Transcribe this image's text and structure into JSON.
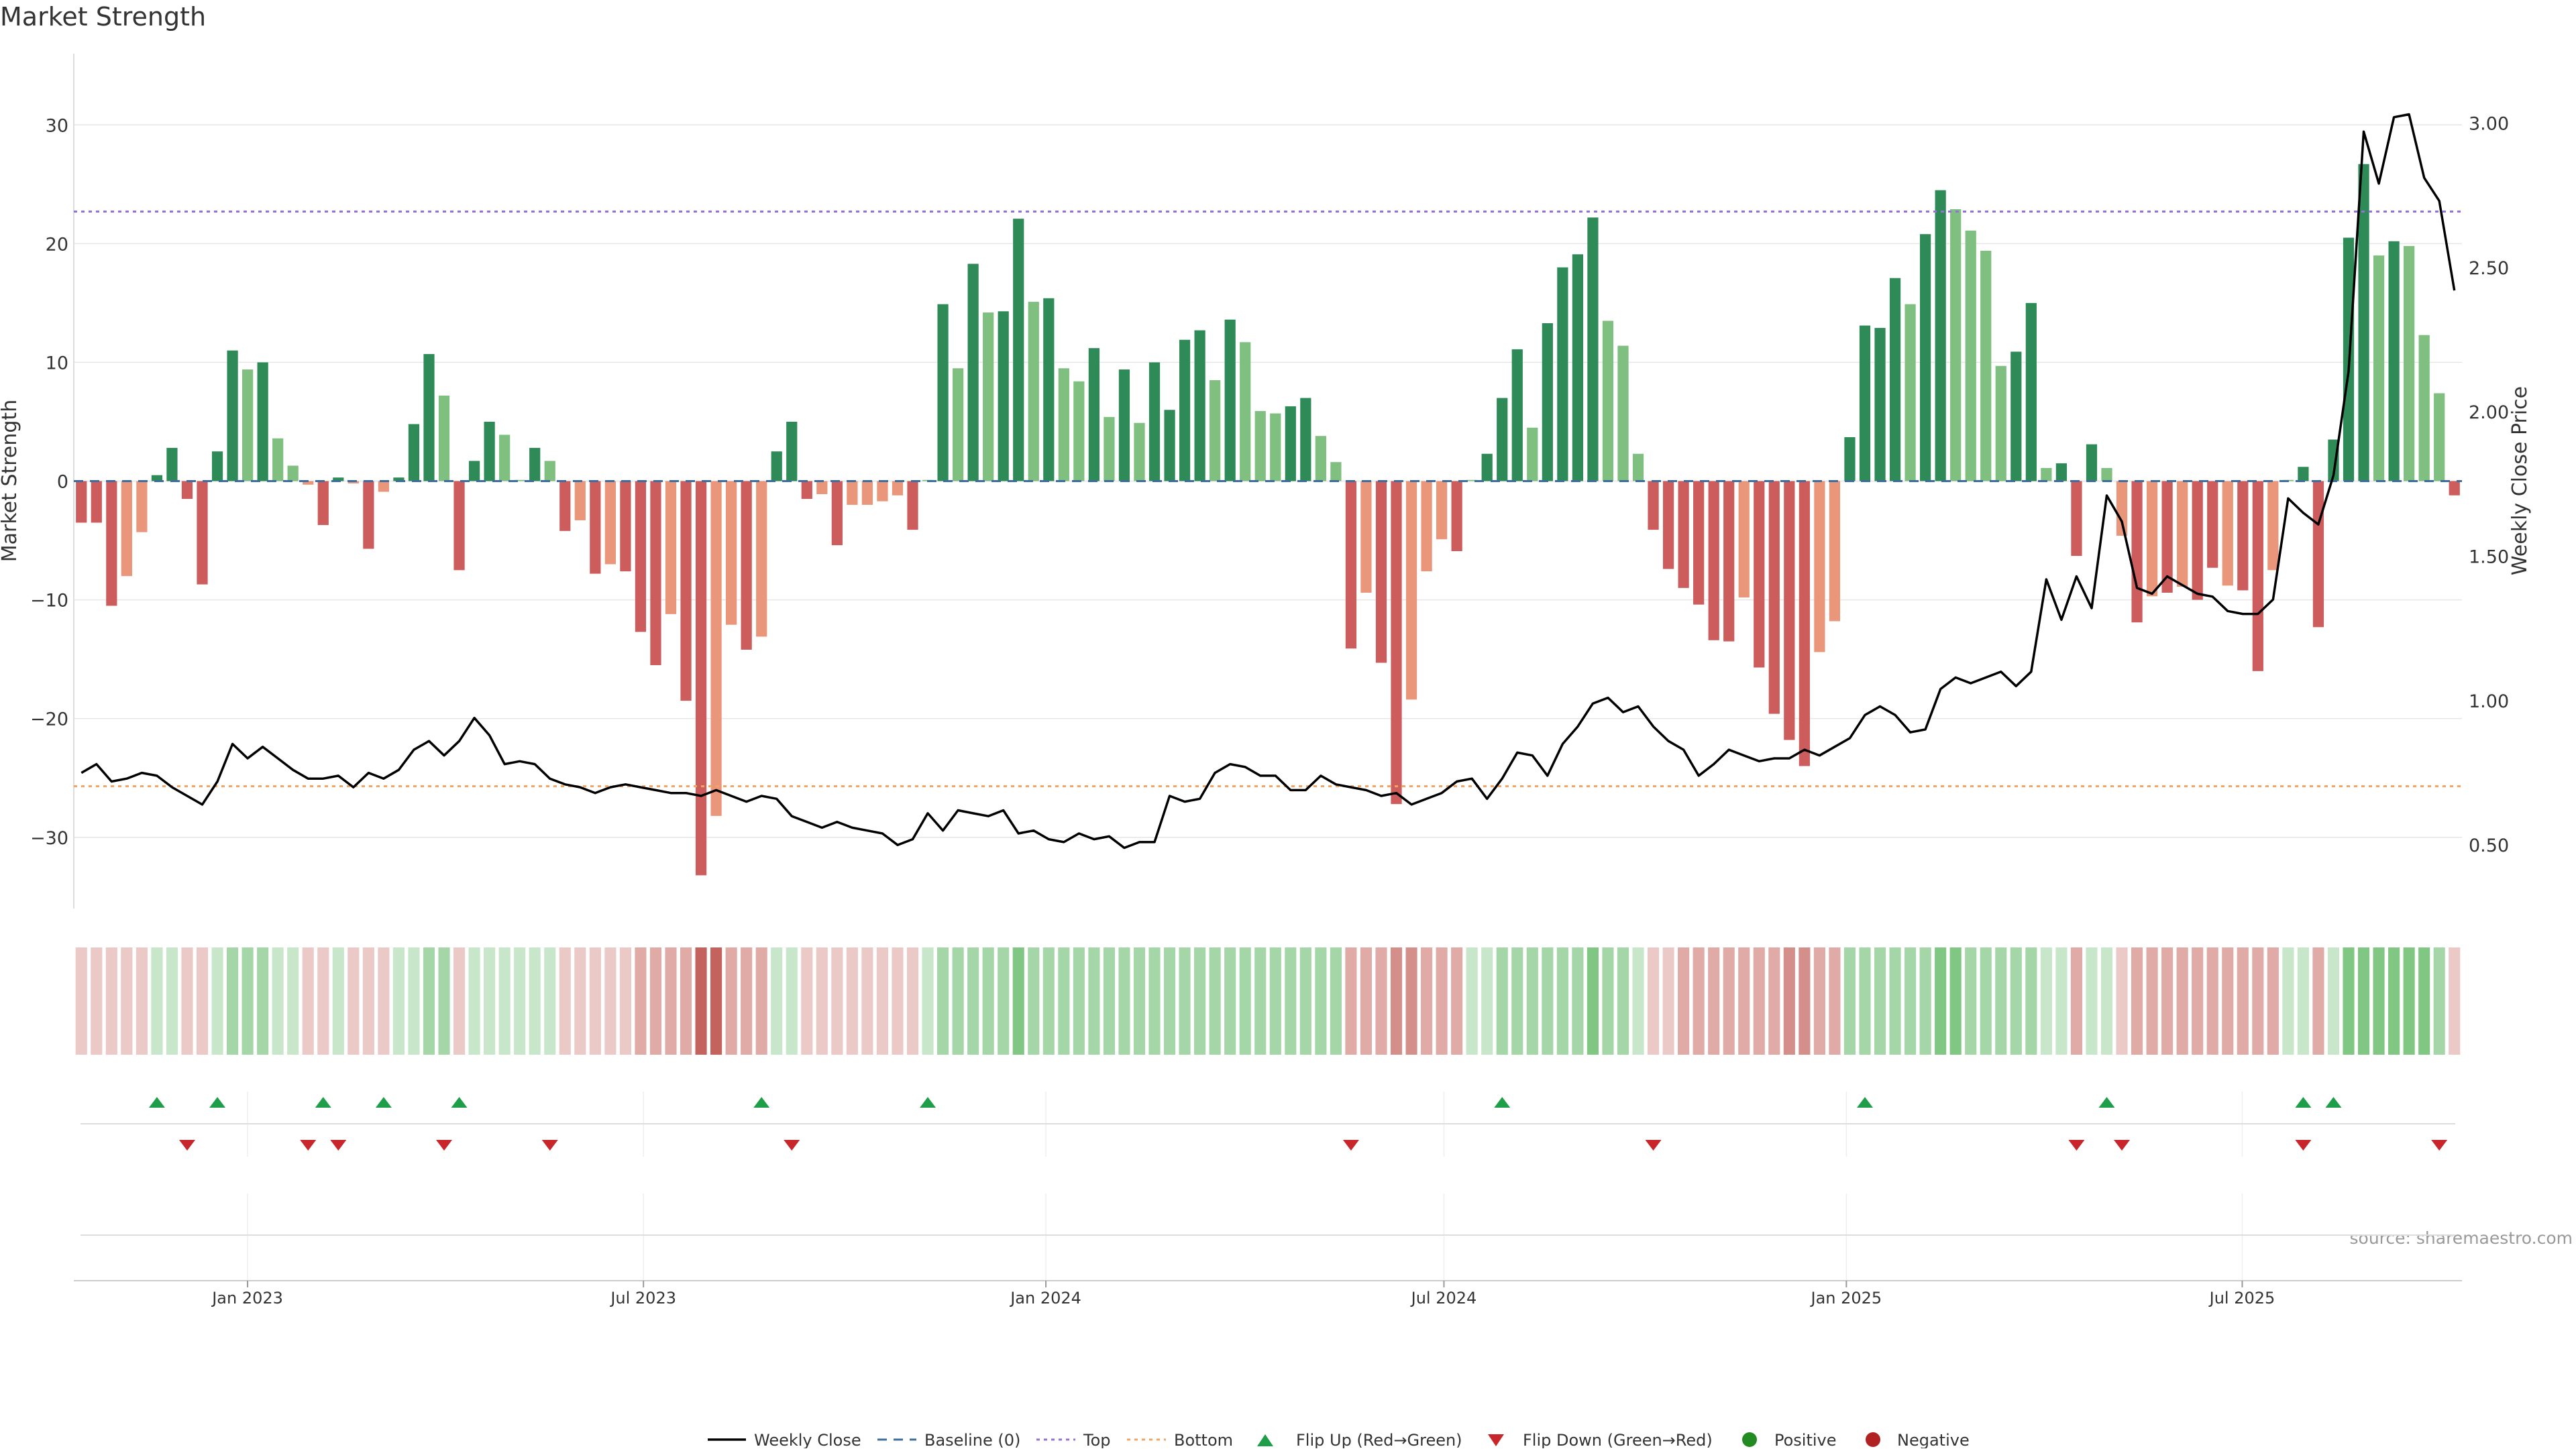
{
  "title": "Market Strength",
  "source": "source: sharemaestro.com",
  "colors": {
    "strong_green": "#2e8b57",
    "light_green": "#7fbf7f",
    "strong_red": "#cd5c5c",
    "light_red": "#e9967a",
    "price_line": "#000000",
    "baseline": "#3b6e9e",
    "top_line": "#9370db",
    "bottom_line": "#f4a460",
    "flip_up": "#1e9e48",
    "flip_down": "#c8262b",
    "positive_dot": "#228b22",
    "negative_dot": "#b22222"
  },
  "chart_data": {
    "type": "bar",
    "title": "Market Strength",
    "ylabel": "Market Strength",
    "y2label": "Weekly Close Price",
    "ylim": [
      -36,
      36
    ],
    "y2lim": [
      0.28,
      3.24
    ],
    "yticks": [
      30,
      20,
      10,
      0,
      -10,
      -20,
      -30
    ],
    "y2ticks": [
      "3.00",
      "2.50",
      "2.00",
      "1.50",
      "1.00",
      "0.50"
    ],
    "y2tick_values": [
      3.0,
      2.5,
      2.0,
      1.5,
      1.0,
      0.5
    ],
    "x_start": "2022-10-17",
    "x_end": "2025-10-06",
    "x_tick_labels": [
      "Jan 2023",
      "Jul 2023",
      "Jan 2024",
      "Jul 2024",
      "Jan 2025",
      "Jul 2025"
    ],
    "x_tick_dates": [
      "2023-01-01",
      "2023-07-01",
      "2024-01-01",
      "2024-07-01",
      "2025-01-01",
      "2025-07-01"
    ],
    "top_level": 22.7,
    "bottom_level": -25.7,
    "grid": true,
    "legend_position": "bottom",
    "series": [
      {
        "name": "Market Strength",
        "values": [
          -3.5,
          -3.5,
          -10.5,
          -8,
          -4.3,
          0.5,
          2.8,
          -1.5,
          -8.7,
          2.5,
          11,
          9.4,
          10,
          3.6,
          1.3,
          -0.3,
          -3.7,
          0.3,
          -0.2,
          -5.7,
          -0.9,
          0.3,
          4.8,
          10.7,
          7.2,
          -7.5,
          1.7,
          5,
          3.9,
          0.1,
          2.8,
          1.7,
          -4.2,
          -3.3,
          -7.8,
          -7,
          -7.6,
          -12.7,
          -15.5,
          -11.2,
          -18.5,
          -33.2,
          -28.2,
          -12.1,
          -14.2,
          -13.1,
          2.5,
          5,
          -1.5,
          -1.1,
          -5.4,
          -2,
          -2,
          -1.7,
          -1.2,
          -4.1,
          0.1,
          14.9,
          9.5,
          18.3,
          14.2,
          14.3,
          22.1,
          15.1,
          15.4,
          9.5,
          8.4,
          11.2,
          5.4,
          9.4,
          4.9,
          10,
          6,
          11.9,
          12.7,
          8.5,
          13.6,
          11.7,
          5.9,
          5.7,
          6.3,
          7,
          3.8,
          1.6,
          -14.1,
          -9.4,
          -15.3,
          -27.2,
          -18.4,
          -7.6,
          -4.9,
          -5.9,
          0.1,
          2.3,
          7,
          11.1,
          4.5,
          13.3,
          18,
          19.1,
          22.2,
          13.5,
          11.4,
          2.3,
          -4.1,
          -7.4,
          -9,
          -10.4,
          -13.4,
          -13.5,
          -9.8,
          -15.7,
          -19.6,
          -21.8,
          -24,
          -14.4,
          -11.8,
          3.7,
          13.1,
          12.9,
          17.1,
          14.9,
          20.8,
          24.5,
          22.9,
          21.1,
          19.4,
          9.7,
          10.9,
          15,
          1.1,
          1.5,
          -6.3,
          3.1,
          1.1,
          -4.6,
          -11.9,
          -9.7,
          -9.4,
          -8.9,
          -10,
          -7.3,
          -8.8,
          -9.2,
          -16,
          -7.5,
          0.1,
          1.2,
          -12.3,
          3.5,
          20.5,
          26.7,
          19,
          20.2,
          19.8,
          12.3,
          7.4,
          -1.2
        ],
        "colors": [
          "strong_red",
          "strong_red",
          "strong_red",
          "light_red",
          "light_red",
          "strong_green",
          "strong_green",
          "strong_red",
          "strong_red",
          "strong_green",
          "strong_green",
          "light_green",
          "strong_green",
          "light_green",
          "light_green",
          "light_red",
          "strong_red",
          "strong_green",
          "light_red",
          "strong_red",
          "light_red",
          "strong_green",
          "strong_green",
          "strong_green",
          "light_green",
          "strong_red",
          "strong_green",
          "strong_green",
          "light_green",
          "light_green",
          "strong_green",
          "light_green",
          "strong_red",
          "light_red",
          "strong_red",
          "light_red",
          "strong_red",
          "strong_red",
          "strong_red",
          "light_red",
          "strong_red",
          "strong_red",
          "light_red",
          "light_red",
          "strong_red",
          "light_red",
          "strong_green",
          "strong_green",
          "strong_red",
          "light_red",
          "strong_red",
          "light_red",
          "light_red",
          "light_red",
          "light_red",
          "strong_red",
          "light_green",
          "strong_green",
          "light_green",
          "strong_green",
          "light_green",
          "strong_green",
          "strong_green",
          "light_green",
          "strong_green",
          "light_green",
          "light_green",
          "strong_green",
          "light_green",
          "strong_green",
          "light_green",
          "strong_green",
          "strong_green",
          "strong_green",
          "strong_green",
          "light_green",
          "strong_green",
          "light_green",
          "light_green",
          "light_green",
          "strong_green",
          "strong_green",
          "light_green",
          "light_green",
          "strong_red",
          "light_red",
          "strong_red",
          "strong_red",
          "light_red",
          "light_red",
          "light_red",
          "strong_red",
          "light_green",
          "strong_green",
          "strong_green",
          "strong_green",
          "light_green",
          "strong_green",
          "strong_green",
          "strong_green",
          "strong_green",
          "light_green",
          "light_green",
          "light_green",
          "strong_red",
          "strong_red",
          "strong_red",
          "strong_red",
          "strong_red",
          "strong_red",
          "light_red",
          "strong_red",
          "strong_red",
          "strong_red",
          "strong_red",
          "light_red",
          "light_red",
          "strong_green",
          "strong_green",
          "strong_green",
          "strong_green",
          "light_green",
          "strong_green",
          "strong_green",
          "light_green",
          "light_green",
          "light_green",
          "light_green",
          "strong_green",
          "strong_green",
          "light_green",
          "strong_green",
          "strong_red",
          "strong_green",
          "light_green",
          "light_red",
          "strong_red",
          "light_red",
          "strong_red",
          "light_red",
          "strong_red",
          "strong_red",
          "light_red",
          "strong_red",
          "strong_red",
          "light_red",
          "light_green",
          "strong_green",
          "strong_red",
          "strong_green",
          "strong_green",
          "strong_green",
          "light_green",
          "strong_green",
          "light_green",
          "light_green",
          "light_green",
          "strong_red"
        ]
      },
      {
        "name": "Weekly Close",
        "values": [
          0.75,
          0.78,
          0.72,
          0.73,
          0.75,
          0.74,
          0.7,
          0.67,
          0.64,
          0.72,
          0.85,
          0.8,
          0.84,
          0.8,
          0.76,
          0.73,
          0.73,
          0.74,
          0.7,
          0.75,
          0.73,
          0.76,
          0.83,
          0.86,
          0.81,
          0.86,
          0.94,
          0.88,
          0.78,
          0.79,
          0.78,
          0.73,
          0.71,
          0.7,
          0.68,
          0.7,
          0.71,
          0.7,
          0.69,
          0.68,
          0.68,
          0.67,
          0.69,
          0.67,
          0.65,
          0.67,
          0.66,
          0.6,
          0.58,
          0.56,
          0.58,
          0.56,
          0.55,
          0.54,
          0.5,
          0.52,
          0.61,
          0.55,
          0.62,
          0.61,
          0.6,
          0.62,
          0.54,
          0.55,
          0.52,
          0.51,
          0.54,
          0.52,
          0.53,
          0.49,
          0.51,
          0.51,
          0.67,
          0.65,
          0.66,
          0.75,
          0.78,
          0.77,
          0.74,
          0.74,
          0.69,
          0.69,
          0.74,
          0.71,
          0.7,
          0.69,
          0.67,
          0.68,
          0.64,
          0.66,
          0.68,
          0.72,
          0.73,
          0.66,
          0.73,
          0.82,
          0.81,
          0.74,
          0.85,
          0.91,
          0.99,
          1.01,
          0.96,
          0.98,
          0.91,
          0.86,
          0.83,
          0.74,
          0.78,
          0.83,
          0.81,
          0.79,
          0.8,
          0.8,
          0.83,
          0.81,
          0.84,
          0.87,
          0.95,
          0.98,
          0.95,
          0.89,
          0.9,
          1.04,
          1.08,
          1.06,
          1.08,
          1.1,
          1.05,
          1.1,
          1.42,
          1.28,
          1.43,
          1.32,
          1.71,
          1.62,
          1.39,
          1.37,
          1.43,
          1.4,
          1.37,
          1.36,
          1.31,
          1.3,
          1.3,
          1.35,
          1.7,
          1.65,
          1.61,
          1.78,
          2.14,
          2.97,
          2.79,
          3.02,
          3.03,
          2.81,
          2.73,
          2.42
        ]
      }
    ],
    "strip_intensity": [
      -1,
      -1,
      -1,
      -1,
      -1,
      1,
      1,
      -1,
      -1,
      1,
      2,
      2,
      2,
      1,
      1,
      -1,
      -1,
      1,
      -1,
      -1,
      -1,
      1,
      1,
      2,
      2,
      -1,
      1,
      1,
      1,
      1,
      1,
      1,
      -1,
      -1,
      -1,
      -1,
      -1,
      -2,
      -2,
      -2,
      -2,
      -4,
      -4,
      -2,
      -2,
      -2,
      1,
      1,
      -1,
      -1,
      -1,
      -1,
      -1,
      -1,
      -1,
      -1,
      1,
      2,
      2,
      2,
      2,
      2,
      3,
      2,
      2,
      2,
      2,
      2,
      2,
      2,
      2,
      2,
      2,
      2,
      2,
      2,
      2,
      2,
      2,
      2,
      2,
      2,
      2,
      2,
      -2,
      -2,
      -2,
      -3,
      -3,
      -2,
      -2,
      -2,
      1,
      1,
      2,
      2,
      2,
      2,
      2,
      2,
      3,
      2,
      2,
      1,
      -1,
      -1,
      -2,
      -2,
      -2,
      -2,
      -2,
      -2,
      -2,
      -3,
      -3,
      -2,
      -2,
      2,
      2,
      2,
      2,
      2,
      2,
      3,
      3,
      2,
      2,
      2,
      2,
      2,
      1,
      1,
      -2,
      1,
      1,
      -1,
      -2,
      -2,
      -2,
      -2,
      -2,
      -2,
      -2,
      -2,
      -2,
      -2,
      1,
      1,
      -2,
      1,
      3,
      3,
      3,
      3,
      3,
      3,
      2,
      -1
    ],
    "flip_up_weeks": [
      5,
      9,
      16,
      20,
      25,
      45,
      56,
      94,
      118,
      134,
      147,
      149
    ],
    "flip_down_weeks": [
      7,
      15,
      17,
      24,
      31,
      47,
      84,
      104,
      132,
      135,
      147,
      156
    ]
  },
  "legend": {
    "weekly_close": "Weekly Close",
    "baseline": "Baseline (0)",
    "top": "Top",
    "bottom": "Bottom",
    "flip_up": "Flip Up (Red→Green)",
    "flip_down": "Flip Down (Green→Red)",
    "positive": "Positive",
    "negative": "Negative"
  }
}
